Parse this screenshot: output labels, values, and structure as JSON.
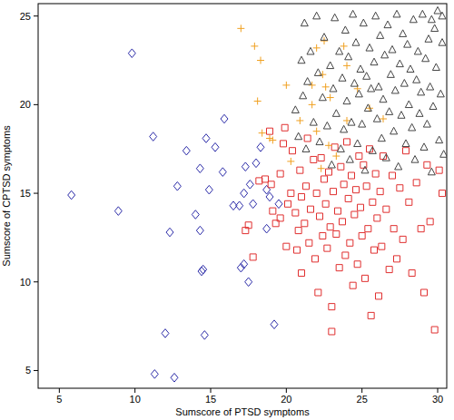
{
  "chart_data": {
    "type": "scatter",
    "x_label": "Sumscore of PTSD symptoms",
    "y_label": "Sumscore of CPTSD symptoms",
    "xlim": [
      3.6,
      30.6
    ],
    "ylim": [
      4.0,
      25.7
    ],
    "xticks": [
      5,
      10,
      15,
      20,
      25,
      30
    ],
    "yticks": [
      5,
      10,
      15,
      20,
      25
    ],
    "grid": false,
    "series": [
      {
        "color": "#2b2ba8",
        "marker": "diamond",
        "x": [
          5.8,
          8.9,
          9.8,
          11.2,
          11.3,
          12.0,
          12.3,
          12.6,
          12.8,
          13.4,
          14.0,
          14.3,
          14.3,
          14.5,
          14.4,
          14.6,
          14.7,
          14.9,
          15.3,
          15.8,
          15.9,
          16.5,
          16.9,
          17.2,
          17.3,
          17.2,
          17.5,
          17.6,
          17.8,
          18.0,
          18.3,
          18.7,
          18.9,
          19.2,
          19.5,
          17.0,
          18.7
        ],
        "values": [
          14.9,
          14.0,
          22.9,
          18.2,
          4.8,
          7.1,
          12.8,
          4.6,
          15.4,
          17.4,
          13.8,
          16.4,
          12.9,
          10.7,
          10.6,
          7.0,
          18.1,
          15.2,
          17.6,
          16.2,
          19.2,
          14.3,
          14.3,
          15.0,
          16.5,
          11.0,
          10.0,
          15.5,
          14.4,
          16.7,
          17.6,
          15.2,
          14.8,
          7.6,
          14.4,
          10.8,
          13.0
        ]
      },
      {
        "color": "#e03030",
        "marker": "square",
        "x": [
          17.3,
          17.5,
          17.8,
          18.2,
          18.6,
          18.9,
          19.0,
          19.1,
          19.3,
          19.6,
          19.6,
          19.8,
          19.9,
          20.0,
          20.1,
          20.3,
          20.4,
          20.6,
          20.7,
          20.8,
          20.9,
          21.0,
          21.0,
          21.2,
          21.3,
          21.4,
          21.5,
          21.6,
          21.8,
          21.9,
          22.0,
          22.1,
          22.2,
          22.3,
          22.4,
          22.5,
          22.6,
          22.7,
          22.8,
          22.9,
          23.0,
          23.0,
          23.1,
          23.2,
          23.3,
          23.4,
          23.5,
          23.6,
          23.7,
          23.8,
          23.9,
          24.0,
          24.1,
          24.2,
          24.3,
          24.4,
          24.5,
          24.6,
          24.7,
          24.8,
          24.9,
          25.0,
          25.1,
          25.2,
          25.3,
          25.4,
          25.5,
          25.6,
          25.7,
          25.8,
          25.9,
          26.0,
          26.1,
          26.2,
          26.3,
          26.4,
          26.6,
          26.8,
          27.0,
          27.1,
          27.3,
          27.5,
          27.7,
          27.9,
          28.1,
          28.3,
          28.6,
          28.9,
          29.1,
          29.3,
          29.5,
          29.8,
          30.1,
          30.3
        ],
        "values": [
          12.9,
          13.2,
          11.4,
          15.7,
          15.8,
          18.5,
          15.5,
          14.0,
          13.3,
          13.6,
          16.1,
          17.8,
          18.7,
          12.0,
          14.4,
          15.0,
          17.4,
          13.9,
          11.8,
          12.9,
          16.3,
          14.8,
          10.5,
          13.3,
          15.4,
          18.1,
          12.2,
          14.1,
          16.9,
          11.3,
          15.0,
          9.4,
          13.7,
          17.0,
          12.6,
          15.8,
          14.4,
          11.9,
          16.2,
          13.1,
          8.6,
          7.2,
          15.1,
          17.6,
          12.7,
          14.0,
          10.8,
          16.5,
          13.4,
          15.5,
          11.5,
          17.9,
          14.7,
          12.2,
          16.0,
          9.8,
          13.8,
          15.2,
          11.0,
          17.1,
          14.2,
          12.6,
          16.6,
          10.2,
          15.4,
          13.0,
          17.5,
          8.1,
          14.5,
          11.8,
          16.1,
          13.6,
          9.2,
          15.1,
          12.0,
          17.1,
          14.1,
          10.7,
          16.0,
          13.0,
          11.3,
          15.3,
          12.4,
          17.4,
          14.5,
          10.5,
          15.6,
          13.0,
          9.4,
          16.6,
          13.4,
          7.3,
          16.3,
          15.0
        ]
      },
      {
        "color": "#f0a020",
        "marker": "plus",
        "x": [
          17.0,
          17.9,
          18.4,
          18.1,
          18.3,
          18.9,
          19.1,
          20.0,
          20.9,
          21.7,
          21.7,
          22.0,
          22.5,
          22.0,
          22.4,
          22.9,
          22.6,
          23.8,
          24.0,
          24.0,
          23.3,
          24.7,
          25.5,
          26.4,
          22.8,
          20.3,
          22.3
        ],
        "values": [
          24.3,
          23.3,
          18.4,
          20.2,
          22.5,
          18.1,
          18.0,
          21.1,
          19.1,
          21.1,
          20.0,
          23.2,
          23.6,
          18.5,
          21.7,
          20.4,
          21.0,
          23.3,
          22.2,
          19.1,
          17.1,
          20.9,
          19.8,
          19.2,
          17.7,
          16.8,
          16.4
        ]
      },
      {
        "color": "#444444",
        "marker": "triangle",
        "x": [
          20.6,
          20.8,
          21.0,
          21.1,
          21.2,
          21.3,
          21.4,
          21.6,
          21.8,
          22.0,
          22.1,
          22.2,
          22.4,
          22.5,
          22.7,
          22.9,
          23.0,
          23.1,
          23.2,
          23.3,
          23.5,
          23.6,
          23.7,
          23.8,
          23.9,
          24.0,
          24.1,
          24.2,
          24.3,
          24.4,
          24.5,
          24.6,
          24.7,
          24.8,
          24.9,
          25.0,
          25.1,
          25.2,
          25.3,
          25.4,
          25.5,
          25.6,
          25.7,
          25.8,
          25.9,
          26.0,
          26.1,
          26.2,
          26.3,
          26.4,
          26.5,
          26.6,
          26.7,
          26.8,
          26.9,
          27.0,
          27.1,
          27.2,
          27.3,
          27.4,
          27.5,
          27.6,
          27.7,
          27.8,
          27.9,
          28.0,
          28.1,
          28.2,
          28.3,
          28.4,
          28.5,
          28.6,
          28.7,
          28.8,
          28.9,
          29.0,
          29.1,
          29.2,
          29.3,
          29.4,
          29.5,
          29.6,
          29.7,
          29.8,
          29.9,
          30.0,
          30.1,
          30.2,
          30.3,
          30.4,
          30.3,
          29.6
        ],
        "values": [
          19.7,
          18.2,
          22.5,
          20.5,
          24.6,
          17.5,
          21.3,
          23.0,
          19.0,
          25.0,
          21.8,
          17.9,
          20.4,
          23.8,
          18.8,
          22.2,
          16.6,
          20.9,
          24.9,
          19.5,
          23.0,
          17.5,
          21.5,
          18.6,
          24.2,
          20.2,
          22.7,
          16.9,
          19.0,
          25.1,
          21.2,
          23.5,
          17.8,
          20.6,
          22.0,
          18.9,
          24.6,
          16.3,
          21.6,
          19.8,
          23.2,
          20.9,
          17.4,
          22.4,
          25.0,
          19.2,
          21.0,
          23.9,
          18.1,
          20.3,
          22.8,
          17.0,
          24.5,
          19.6,
          21.7,
          23.1,
          18.5,
          20.8,
          25.1,
          16.5,
          22.3,
          19.4,
          24.0,
          21.2,
          17.8,
          23.4,
          20.0,
          22.0,
          18.7,
          24.8,
          16.9,
          21.4,
          23.0,
          19.5,
          20.7,
          25.1,
          17.6,
          22.6,
          18.9,
          23.7,
          21.0,
          16.2,
          19.9,
          24.3,
          22.1,
          25.3,
          18.0,
          20.6,
          23.5,
          17.2,
          25.0,
          24.8
        ]
      }
    ]
  }
}
